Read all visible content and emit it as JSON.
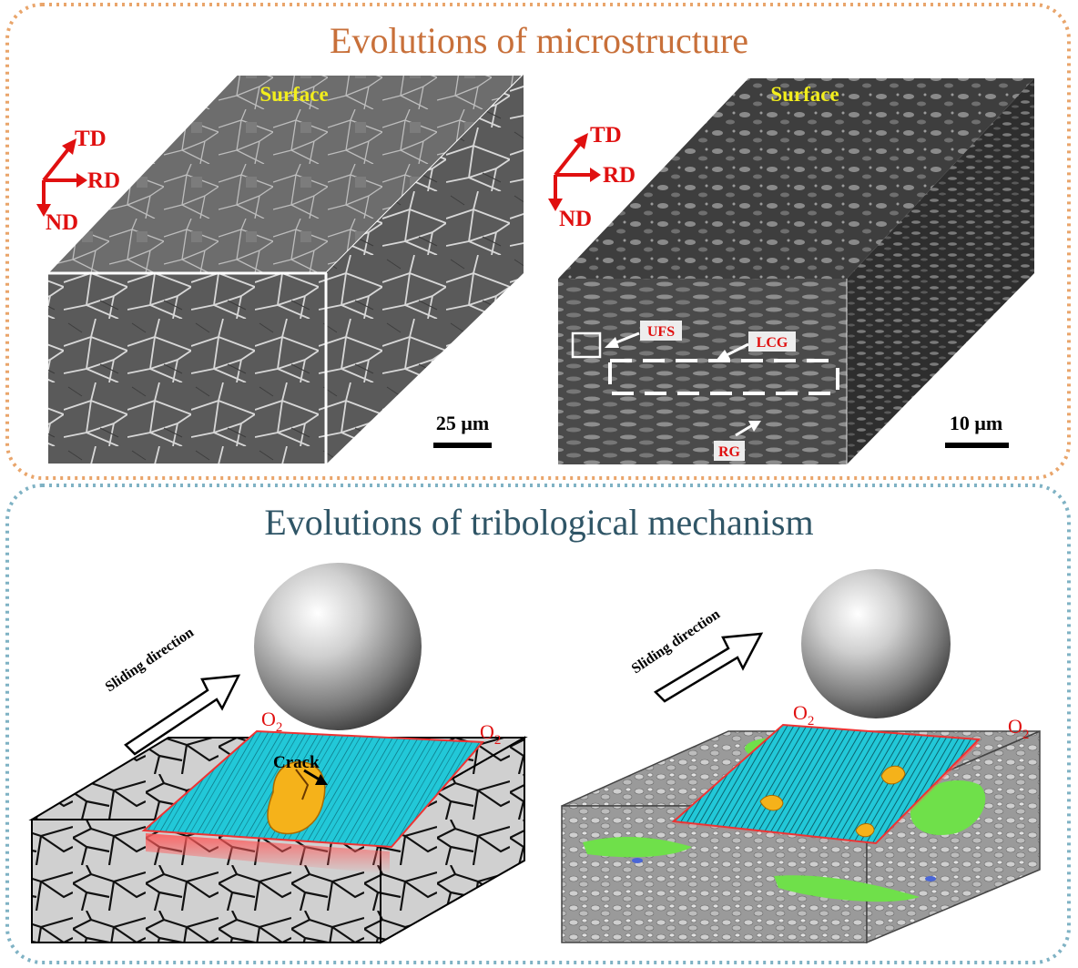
{
  "top_panel": {
    "title": "Evolutions of microstructure",
    "left_block": {
      "surface_label": "Surface",
      "axes": {
        "td": "TD",
        "rd": "RD",
        "nd": "ND"
      },
      "scale_bar": "25 μm"
    },
    "right_block": {
      "surface_label": "Surface",
      "axes": {
        "td": "TD",
        "rd": "RD",
        "nd": "ND"
      },
      "scale_bar": "10 μm",
      "labels": {
        "ufs": "UFS",
        "lcg": "LCG",
        "rg": "RG"
      }
    }
  },
  "bottom_panel": {
    "title": "Evolutions of tribological mechanism",
    "left_scene": {
      "sliding_label": "Sliding direction",
      "oxygen_left": "O",
      "oxygen_right": "O",
      "oxygen_subscript": "2",
      "crack_label": "Crack"
    },
    "right_scene": {
      "sliding_label": "Sliding direction",
      "oxygen_left": "O",
      "oxygen_right": "O",
      "oxygen_subscript": "2"
    }
  },
  "colors": {
    "top_border": "#e9a56b",
    "bottom_border": "#7fb2c4",
    "top_title": "#c8703a",
    "bottom_title": "#2f5566",
    "surface_label": "#f2ee1c",
    "axis_red": "#e01010",
    "wear_track": "#22c8d8",
    "debris": "#f5b21a",
    "green_phase": "#6fe04a"
  }
}
